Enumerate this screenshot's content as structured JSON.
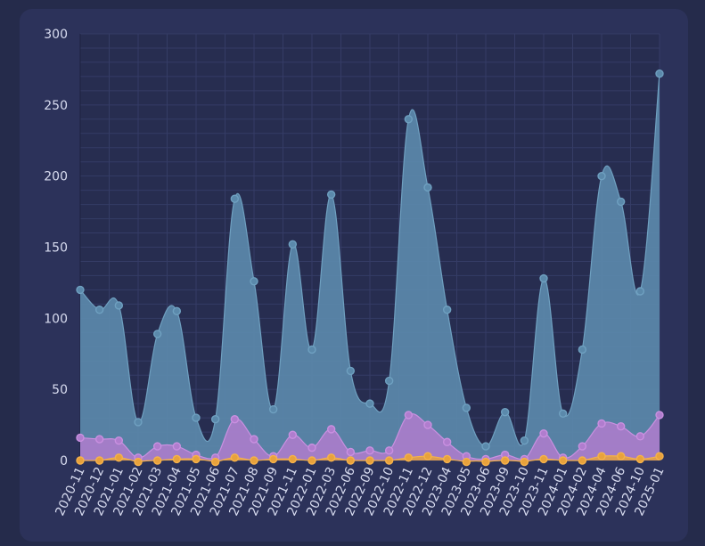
{
  "colors": {
    "page_bg": "#252b4b",
    "card_bg": "#2c325a",
    "plot_bg": "#272d50",
    "grid": "#353c66",
    "text": "#d8dcf0"
  },
  "chart_data": {
    "type": "area",
    "title": "",
    "xlabel": "",
    "ylabel": "",
    "ylim": [
      0,
      300
    ],
    "yticks": [
      0,
      50,
      100,
      150,
      200,
      250,
      300
    ],
    "grid": true,
    "legend": "none",
    "categories": [
      "2020-11",
      "2020-12",
      "2021-01",
      "2021-02",
      "2021-03",
      "2021-04",
      "2021-05",
      "2021-06",
      "2021-07",
      "2021-08",
      "2021-09",
      "2021-11",
      "2022-01",
      "2022-03",
      "2022-06",
      "2022-09",
      "2022-10",
      "2022-11",
      "2022-12",
      "2023-04",
      "2023-05",
      "2023-06",
      "2023-09",
      "2023-10",
      "2023-11",
      "2024-01",
      "2024-02",
      "2024-04",
      "2024-06",
      "2024-10",
      "2025-01"
    ],
    "series": [
      {
        "color": "#5b89ab",
        "stroke": "#6fa0c0",
        "values": [
          120,
          106,
          109,
          27,
          89,
          105,
          30,
          29,
          184,
          126,
          36,
          152,
          78,
          187,
          63,
          40,
          56,
          240,
          192,
          106,
          37,
          10,
          34,
          14,
          128,
          33,
          78,
          200,
          182,
          119,
          272
        ]
      },
      {
        "color": "#b07dce",
        "stroke": "#c990e0",
        "values": [
          16,
          15,
          14,
          2,
          10,
          10,
          4,
          2,
          29,
          15,
          3,
          18,
          9,
          22,
          6,
          7,
          7,
          32,
          25,
          13,
          3,
          1,
          4,
          1,
          19,
          2,
          10,
          26,
          24,
          17,
          32
        ]
      },
      {
        "color": "#e8a23c",
        "stroke": "#f5b24a",
        "values": [
          0,
          0,
          2,
          -1,
          0,
          1,
          1,
          -1,
          2,
          0,
          1,
          1,
          0,
          2,
          0,
          0,
          0,
          2,
          3,
          1,
          -1,
          -1,
          0,
          -1,
          1,
          0,
          0,
          3,
          3,
          1,
          3
        ]
      }
    ]
  }
}
